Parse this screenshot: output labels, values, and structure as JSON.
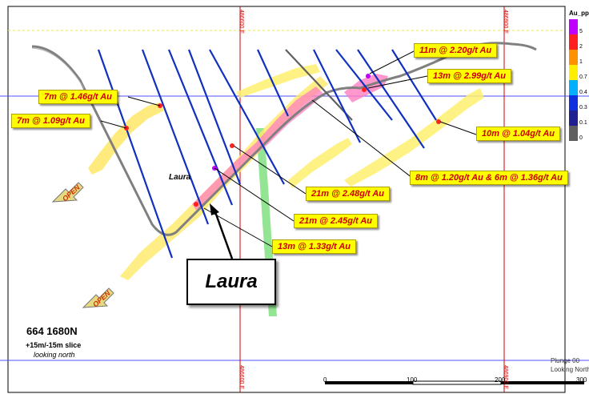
{
  "section": {
    "title": "664 1680N",
    "slice": "+15m/-15m slice",
    "looking": "looking north"
  },
  "labels": {
    "laura_box": "Laura",
    "laura_small": "Laura",
    "open": "OPEN"
  },
  "callouts": [
    {
      "id": "c1",
      "text": "11m @ 2.20g/t Au"
    },
    {
      "id": "c2",
      "text": "13m @ 2.99g/t Au"
    },
    {
      "id": "c3",
      "text": "7m @ 1.46g/t Au"
    },
    {
      "id": "c4",
      "text": "7m @ 1.09g/t Au"
    },
    {
      "id": "c5",
      "text": "10m @ 1.04g/t Au"
    },
    {
      "id": "c6",
      "text": "8m @ 1.20g/t Au & 6m @ 1.36g/t Au"
    },
    {
      "id": "c7",
      "text": "21m @ 2.48g/t Au"
    },
    {
      "id": "c8",
      "text": "21m @ 2.45g/t Au"
    },
    {
      "id": "c9",
      "text": "13m @ 1.33g/t Au"
    }
  ],
  "eastings": {
    "left": "486600 E",
    "right": "486900 E"
  },
  "legend": {
    "title": "Au_ppm",
    "items": [
      {
        "label": "5",
        "color": "#c000ff"
      },
      {
        "label": "2",
        "color": "#ff2020"
      },
      {
        "label": "1",
        "color": "#ff9000"
      },
      {
        "label": "0.7",
        "color": "#ffee00"
      },
      {
        "label": "0.4",
        "color": "#00b0ff"
      },
      {
        "label": "0.3",
        "color": "#1030e0"
      },
      {
        "label": "0.1",
        "color": "#202090"
      },
      {
        "label": "0",
        "color": "#606060"
      }
    ]
  },
  "view": {
    "plunge": "Plunge 00",
    "looking": "Looking North"
  },
  "scale_bar": {
    "ticks": [
      "0",
      "100",
      "200",
      "300"
    ]
  },
  "colors": {
    "high_grade": "#ff2020",
    "very_high": "#c000ff",
    "moderate": "#ff9000",
    "low": "#ffee00",
    "gridline": "#d00000",
    "level_line": "#4040ff",
    "structure": "#70e070"
  }
}
